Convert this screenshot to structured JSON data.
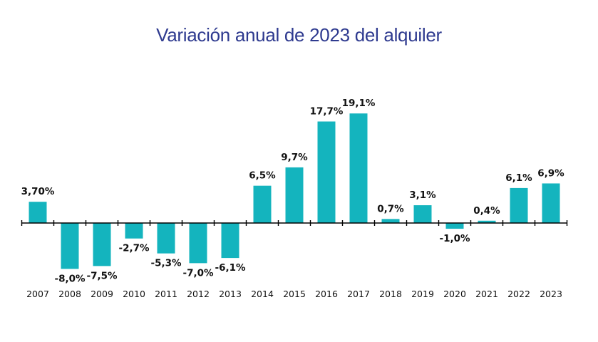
{
  "chart_data": {
    "type": "bar",
    "title": "Variación anual de 2023 del alquiler",
    "xlabel": "",
    "ylabel": "",
    "categories": [
      "2007",
      "2008",
      "2009",
      "2010",
      "2011",
      "2012",
      "2013",
      "2014",
      "2015",
      "2016",
      "2017",
      "2018",
      "2019",
      "2020",
      "2021",
      "2022",
      "2023"
    ],
    "values": [
      3.7,
      -8.0,
      -7.5,
      -2.7,
      -5.3,
      -7.0,
      -6.1,
      6.5,
      9.7,
      17.7,
      19.1,
      0.7,
      3.1,
      -1.0,
      0.4,
      6.1,
      6.9
    ],
    "data_labels": [
      "3,70%",
      "-8,0%",
      "-7,5%",
      "-2,7%",
      "-5,3%",
      "-7,0%",
      "-6,1%",
      "6,5%",
      "9,7%",
      "17,7%",
      "19,1%",
      "0,7%",
      "3,1%",
      "-1,0%",
      "0,4%",
      "6,1%",
      "6,9%"
    ],
    "grid": false,
    "legend": "none",
    "colors": {
      "bar": "#14b4be",
      "title": "#2e3a8f",
      "axis": "#000000"
    }
  }
}
